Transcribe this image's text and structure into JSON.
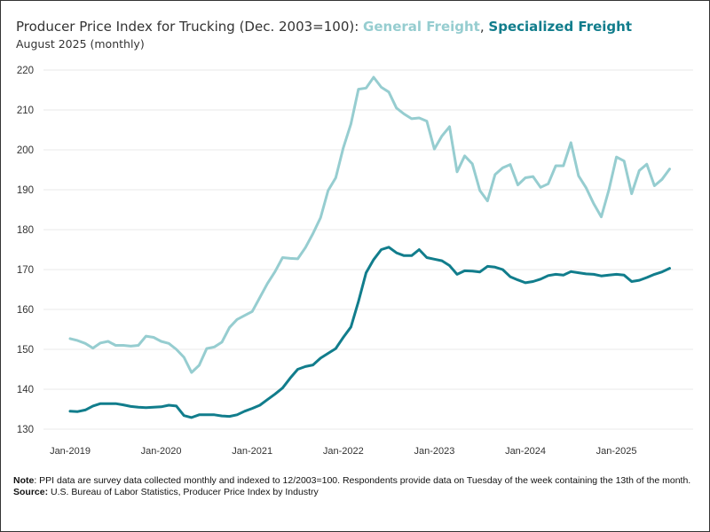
{
  "chart_data": {
    "type": "line",
    "title": "Producer Price Index for Trucking (Dec. 2003=100): ",
    "title_series": [
      "General Freight",
      "Specialized Freight"
    ],
    "subtitle": "August 2025 (monthly)",
    "x_start": "2019-01",
    "x_end": "2025-08",
    "x_frequency": "monthly",
    "x_tick_labels": [
      "Jan-2019",
      "Jan-2020",
      "Jan-2021",
      "Jan-2022",
      "Jan-2023",
      "Jan-2024",
      "Jan-2025"
    ],
    "y_ticks": [
      130,
      140,
      150,
      160,
      170,
      180,
      190,
      200,
      210,
      220
    ],
    "ylim": [
      128,
      222
    ],
    "grid": "horizontal",
    "series": [
      {
        "name": "General Freight",
        "color": "#96cdd0",
        "values": [
          152.7,
          152.2,
          151.5,
          150.3,
          151.6,
          152,
          151,
          151,
          150.8,
          151,
          153.3,
          153,
          152,
          151.5,
          150,
          148,
          144.2,
          146,
          150.2,
          150.6,
          151.8,
          155.5,
          157.5,
          158.5,
          159.5,
          163,
          166.5,
          169.5,
          173,
          172.8,
          172.7,
          175.5,
          179,
          183,
          189.8,
          193,
          200.5,
          206.5,
          215.2,
          215.5,
          218.2,
          215.7,
          214.5,
          210.5,
          209,
          207.8,
          208,
          207.2,
          200.2,
          203.5,
          205.8,
          194.5,
          198.5,
          196.5,
          189.8,
          187.2,
          193.8,
          195.5,
          196.3,
          191.2,
          193,
          193.3,
          190.6,
          191.5,
          196,
          196,
          201.8,
          193.5,
          190.5,
          186.5,
          183.2,
          190,
          198.2,
          197.2,
          189,
          194.8,
          196.4,
          191,
          192.6,
          195.2
        ]
      },
      {
        "name": "Specialized Freight",
        "color": "#117d8c",
        "values": [
          134.5,
          134.4,
          134.8,
          135.8,
          136.4,
          136.4,
          136.4,
          136.1,
          135.7,
          135.5,
          135.4,
          135.5,
          135.6,
          136,
          135.8,
          133.4,
          132.9,
          133.6,
          133.6,
          133.6,
          133.3,
          133.2,
          133.6,
          134.5,
          135.2,
          136,
          137.4,
          138.8,
          140.3,
          142.8,
          145,
          145.7,
          146.1,
          147.8,
          149,
          150.2,
          153,
          155.6,
          162,
          169.2,
          172.5,
          175,
          175.6,
          174.2,
          173.5,
          173.5,
          175,
          173,
          172.6,
          172.2,
          171,
          168.8,
          169.7,
          169.6,
          169.4,
          170.8,
          170.6,
          170,
          168.2,
          167.4,
          166.7,
          167,
          167.6,
          168.5,
          168.8,
          168.6,
          169.5,
          169.2,
          168.9,
          168.8,
          168.4,
          168.6,
          168.8,
          168.6,
          167,
          167.3,
          168,
          168.8,
          169.4,
          170.3
        ]
      }
    ]
  },
  "notes": {
    "note_label": "Note",
    "note_text": ": PPI data are survey data collected monthly and indexed to 12/2003=100. Respondents provide data on Tuesday of the week containing the 13th of the month.",
    "source_label": "Source:",
    "source_text": " U.S. Bureau of Labor Statistics, Producer Price Index by Industry"
  }
}
